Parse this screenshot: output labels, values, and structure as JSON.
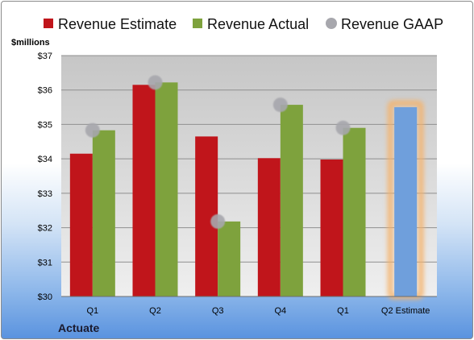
{
  "company": "Actuate",
  "chart_data": {
    "type": "bar",
    "ylabel": "$millions",
    "ylim": [
      30,
      37
    ],
    "ytick_labels": [
      "$30",
      "$31",
      "$32",
      "$33",
      "$34",
      "$35",
      "$36",
      "$37"
    ],
    "categories": [
      "Q1",
      "Q2",
      "Q3",
      "Q4",
      "Q1",
      "Q2 Estimate"
    ],
    "grid": true,
    "legend_position": "top",
    "series": [
      {
        "name": "Revenue Estimate",
        "type": "bar",
        "color": "#c0151b",
        "values": [
          34.15,
          36.15,
          34.65,
          34.02,
          33.98,
          35.5
        ]
      },
      {
        "name": "Revenue Actual",
        "type": "bar",
        "color": "#7ea23d",
        "values": [
          34.83,
          36.22,
          32.18,
          35.57,
          34.9,
          null
        ]
      },
      {
        "name": "Revenue GAAP",
        "type": "scatter",
        "color": "#a7a7ad",
        "values": [
          34.83,
          36.22,
          32.18,
          35.57,
          34.9,
          null
        ]
      }
    ],
    "estimate_highlight": {
      "category_index": 5,
      "color": "#6f9fdc",
      "glow": "#f5b26b"
    }
  }
}
